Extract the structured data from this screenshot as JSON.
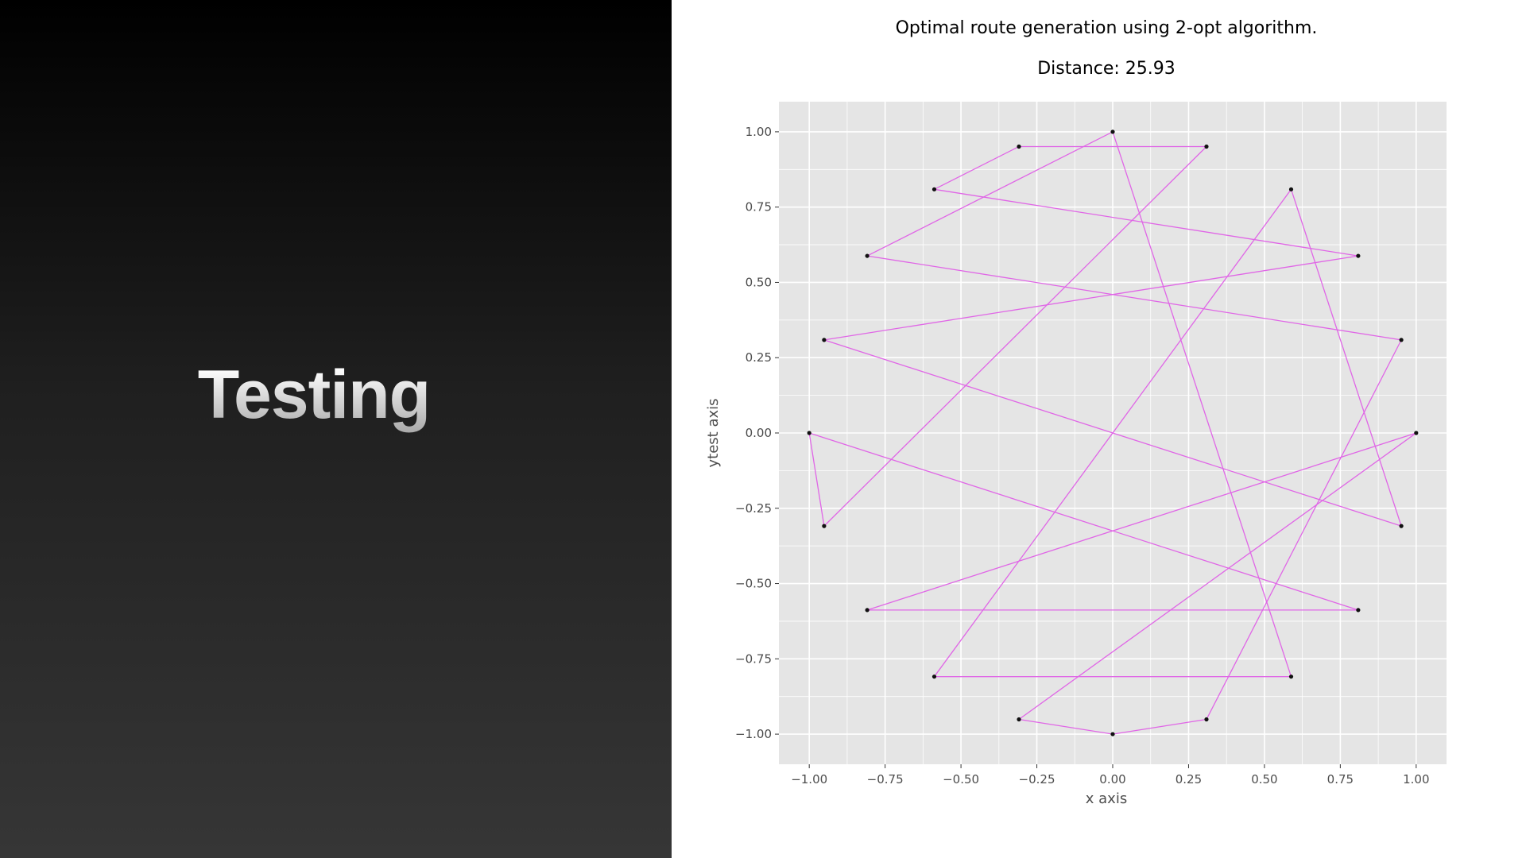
{
  "slide": {
    "title": "Testing"
  },
  "chart_data": {
    "type": "line",
    "title": "Optimal route generation using 2-opt algorithm.",
    "subtitle": "Distance: 25.93",
    "xlabel": "x axis",
    "ylabel": "ytest axis",
    "xlim": [
      -1.1,
      1.1
    ],
    "ylim": [
      -1.1,
      1.1
    ],
    "xticks": [
      -1.0,
      -0.75,
      -0.5,
      -0.25,
      0.0,
      0.25,
      0.5,
      0.75,
      1.0
    ],
    "yticks": [
      -1.0,
      -0.75,
      -0.5,
      -0.25,
      0.0,
      0.25,
      0.5,
      0.75,
      1.0
    ],
    "xtick_labels": [
      "−1.00",
      "−0.75",
      "−0.50",
      "−0.25",
      "0.00",
      "0.25",
      "0.50",
      "0.75",
      "1.00"
    ],
    "ytick_labels": [
      "−1.00",
      "−0.75",
      "−0.50",
      "−0.25",
      "0.00",
      "0.25",
      "0.50",
      "0.75",
      "1.00"
    ],
    "grid": true,
    "colors": {
      "background": "#e5e5e5",
      "grid": "#ffffff",
      "route": "#e066e6",
      "point": "#111111"
    },
    "route": [
      {
        "x": 0.0,
        "y": -1.0
      },
      {
        "x": 0.309,
        "y": -0.951
      },
      {
        "x": 0.951,
        "y": 0.309
      },
      {
        "x": -0.809,
        "y": 0.588
      },
      {
        "x": 0.0,
        "y": 1.0
      },
      {
        "x": 0.588,
        "y": -0.809
      },
      {
        "x": -0.588,
        "y": -0.809
      },
      {
        "x": 0.588,
        "y": 0.809
      },
      {
        "x": 0.951,
        "y": -0.309
      },
      {
        "x": -0.951,
        "y": 0.309
      },
      {
        "x": 0.809,
        "y": 0.588
      },
      {
        "x": -0.588,
        "y": 0.809
      },
      {
        "x": -0.309,
        "y": 0.951
      },
      {
        "x": 0.309,
        "y": 0.951
      },
      {
        "x": -0.951,
        "y": -0.309
      },
      {
        "x": -1.0,
        "y": 0.0
      },
      {
        "x": 0.809,
        "y": -0.588
      },
      {
        "x": -0.809,
        "y": -0.588
      },
      {
        "x": 1.0,
        "y": 0.0
      },
      {
        "x": -0.309,
        "y": -0.951
      }
    ]
  }
}
